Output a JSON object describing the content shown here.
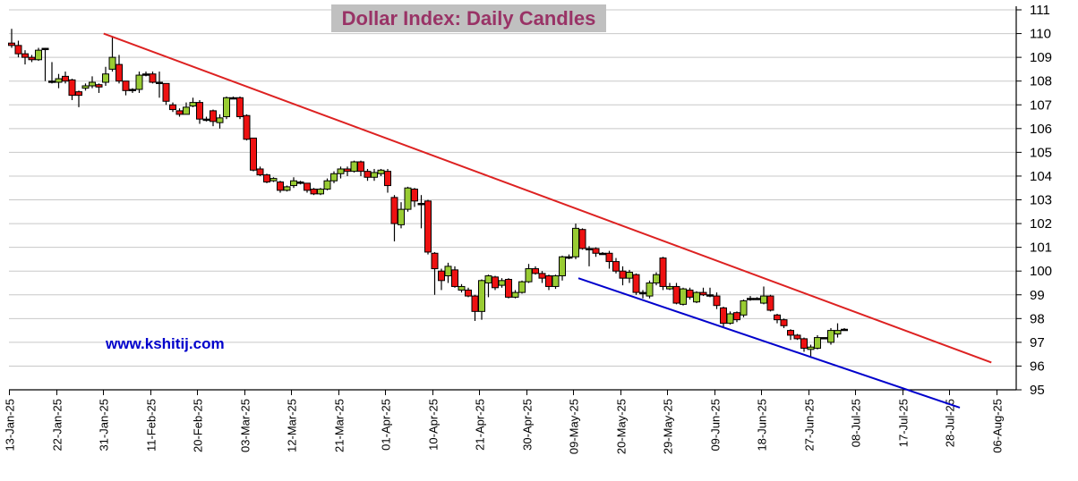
{
  "chart_data": {
    "type": "candlestick",
    "title": "Dollar Index: Daily Candles",
    "watermark": "www.kshitij.com",
    "xlabel": "",
    "ylabel": "",
    "ylim": [
      95,
      111
    ],
    "y_ticks": [
      95,
      96,
      97,
      98,
      99,
      100,
      101,
      102,
      103,
      104,
      105,
      106,
      107,
      108,
      109,
      110,
      111
    ],
    "y_axis_side": "right",
    "grid": "horizontal",
    "x_tick_every_n_sessions": 7,
    "x_tick_labels": [
      "13-Jan-25",
      "22-Jan-25",
      "31-Jan-25",
      "11-Feb-25",
      "20-Feb-25",
      "03-Mar-25",
      "12-Mar-25",
      "21-Mar-25",
      "01-Apr-25",
      "10-Apr-25",
      "21-Apr-25",
      "30-Apr-25",
      "09-May-25",
      "20-May-25",
      "29-May-25",
      "09-Jun-25",
      "18-Jun-25",
      "27-Jun-25",
      "08-Jul-25",
      "17-Jul-25",
      "28-Jul-25",
      "06-Aug-25"
    ],
    "colors": {
      "up": "#99cc33",
      "down": "#ee1111",
      "resistance": "#dd2222",
      "support": "#0000cc",
      "grid": "#c8c8c8"
    },
    "ohlc": [
      [
        109.6,
        110.2,
        109.4,
        109.5
      ],
      [
        109.5,
        109.7,
        109.0,
        109.15
      ],
      [
        109.15,
        109.3,
        108.7,
        109.0
      ],
      [
        109.0,
        109.1,
        108.8,
        108.9
      ],
      [
        108.9,
        109.4,
        108.85,
        109.3
      ],
      [
        109.35,
        109.4,
        108.0,
        109.38
      ],
      [
        107.95,
        108.8,
        107.9,
        108.0
      ],
      [
        107.95,
        108.3,
        107.7,
        108.1
      ],
      [
        108.2,
        108.4,
        107.9,
        108.0
      ],
      [
        108.05,
        108.1,
        107.2,
        107.4
      ],
      [
        107.55,
        107.6,
        106.9,
        107.4
      ],
      [
        107.7,
        107.9,
        107.6,
        107.8
      ],
      [
        107.8,
        108.2,
        107.7,
        107.95
      ],
      [
        107.85,
        107.9,
        107.5,
        107.75
      ],
      [
        107.95,
        108.6,
        107.8,
        108.3
      ],
      [
        108.5,
        109.9,
        108.4,
        109.0
      ],
      [
        108.7,
        109.1,
        107.9,
        108.0
      ],
      [
        108.0,
        108.0,
        107.4,
        107.6
      ],
      [
        107.6,
        107.7,
        107.5,
        107.65
      ],
      [
        107.65,
        108.4,
        107.5,
        108.25
      ],
      [
        108.25,
        108.4,
        108.2,
        108.3
      ],
      [
        108.3,
        108.4,
        107.9,
        107.95
      ],
      [
        107.95,
        108.4,
        107.3,
        107.9
      ],
      [
        107.9,
        107.9,
        107.0,
        107.15
      ],
      [
        107.0,
        107.1,
        106.7,
        106.8
      ],
      [
        106.75,
        106.85,
        106.5,
        106.6
      ],
      [
        106.6,
        107.1,
        106.6,
        106.9
      ],
      [
        106.95,
        107.3,
        106.9,
        107.1
      ],
      [
        107.1,
        107.2,
        106.2,
        106.4
      ],
      [
        106.4,
        106.5,
        106.3,
        106.4
      ],
      [
        106.75,
        106.8,
        106.1,
        106.3
      ],
      [
        106.25,
        106.6,
        106.0,
        106.45
      ],
      [
        106.5,
        107.35,
        106.4,
        107.3
      ],
      [
        107.3,
        107.35,
        107.25,
        107.3
      ],
      [
        107.3,
        107.35,
        106.4,
        106.5
      ],
      [
        106.55,
        106.6,
        105.5,
        105.55
      ],
      [
        105.6,
        105.6,
        104.2,
        104.25
      ],
      [
        104.3,
        104.4,
        104.0,
        104.05
      ],
      [
        104.05,
        104.1,
        103.7,
        103.75
      ],
      [
        103.8,
        103.95,
        103.75,
        103.9
      ],
      [
        103.75,
        103.8,
        103.3,
        103.4
      ],
      [
        103.4,
        103.6,
        103.35,
        103.55
      ],
      [
        103.6,
        103.95,
        103.5,
        103.8
      ],
      [
        103.75,
        103.8,
        103.65,
        103.7
      ],
      [
        103.7,
        103.7,
        103.3,
        103.4
      ],
      [
        103.45,
        103.5,
        103.2,
        103.25
      ],
      [
        103.25,
        103.5,
        103.2,
        103.45
      ],
      [
        103.45,
        103.9,
        103.4,
        103.8
      ],
      [
        103.8,
        104.2,
        103.7,
        104.1
      ],
      [
        104.1,
        104.4,
        103.9,
        104.3
      ],
      [
        104.3,
        104.4,
        104.0,
        104.2
      ],
      [
        104.2,
        104.65,
        104.15,
        104.6
      ],
      [
        104.6,
        104.65,
        104.0,
        104.2
      ],
      [
        104.2,
        104.3,
        103.8,
        103.95
      ],
      [
        103.95,
        104.3,
        103.8,
        104.15
      ],
      [
        104.1,
        104.3,
        104.0,
        104.25
      ],
      [
        104.2,
        104.3,
        103.3,
        103.6
      ],
      [
        103.1,
        103.2,
        101.25,
        102.0
      ],
      [
        101.95,
        102.9,
        101.8,
        102.6
      ],
      [
        102.6,
        103.55,
        102.5,
        103.5
      ],
      [
        103.45,
        103.5,
        102.7,
        102.95
      ],
      [
        102.85,
        103.2,
        101.8,
        102.85
      ],
      [
        102.95,
        103.0,
        100.7,
        100.8
      ],
      [
        100.75,
        100.8,
        99.0,
        100.1
      ],
      [
        100.0,
        100.1,
        99.2,
        99.6
      ],
      [
        99.8,
        100.35,
        99.5,
        100.2
      ],
      [
        100.05,
        100.2,
        99.3,
        99.35
      ],
      [
        99.2,
        99.45,
        99.1,
        99.35
      ],
      [
        99.2,
        99.3,
        98.9,
        98.95
      ],
      [
        98.95,
        99.0,
        97.9,
        98.3
      ],
      [
        98.3,
        99.65,
        97.95,
        99.6
      ],
      [
        99.5,
        99.85,
        98.9,
        99.8
      ],
      [
        99.75,
        99.8,
        99.2,
        99.3
      ],
      [
        99.4,
        99.7,
        99.3,
        99.6
      ],
      [
        99.65,
        99.7,
        98.85,
        98.9
      ],
      [
        98.9,
        99.2,
        98.85,
        99.1
      ],
      [
        99.1,
        99.6,
        99.05,
        99.55
      ],
      [
        99.55,
        100.3,
        99.5,
        100.1
      ],
      [
        100.1,
        100.2,
        99.85,
        99.9
      ],
      [
        99.9,
        100.0,
        99.5,
        99.7
      ],
      [
        99.8,
        99.85,
        99.2,
        99.35
      ],
      [
        99.35,
        99.85,
        99.25,
        99.8
      ],
      [
        99.8,
        100.65,
        99.6,
        100.6
      ],
      [
        100.6,
        100.7,
        100.5,
        100.6
      ],
      [
        100.6,
        102.0,
        100.5,
        101.8
      ],
      [
        101.75,
        101.8,
        100.9,
        100.95
      ],
      [
        100.95,
        101.05,
        100.2,
        100.95
      ],
      [
        100.95,
        101.0,
        100.6,
        100.75
      ],
      [
        100.75,
        100.8,
        100.7,
        100.75
      ],
      [
        100.75,
        100.85,
        100.1,
        100.4
      ],
      [
        100.4,
        100.55,
        99.9,
        100.0
      ],
      [
        100.0,
        100.2,
        99.4,
        99.7
      ],
      [
        99.7,
        100.05,
        99.5,
        99.95
      ],
      [
        99.85,
        99.9,
        99.0,
        99.1
      ],
      [
        99.1,
        99.2,
        98.85,
        99.1
      ],
      [
        98.95,
        99.6,
        98.85,
        99.5
      ],
      [
        99.5,
        99.95,
        99.4,
        99.85
      ],
      [
        100.55,
        100.6,
        99.2,
        99.35
      ],
      [
        99.25,
        99.5,
        99.2,
        99.35
      ],
      [
        99.35,
        99.5,
        98.6,
        98.65
      ],
      [
        98.6,
        99.3,
        98.55,
        99.25
      ],
      [
        99.2,
        99.3,
        98.8,
        98.9
      ],
      [
        98.7,
        99.15,
        98.65,
        99.1
      ],
      [
        99.1,
        99.3,
        98.95,
        99.0
      ],
      [
        99.0,
        99.3,
        98.9,
        98.95
      ],
      [
        98.95,
        99.1,
        98.4,
        98.55
      ],
      [
        98.45,
        98.5,
        97.6,
        97.8
      ],
      [
        97.8,
        98.3,
        97.75,
        98.2
      ],
      [
        98.25,
        98.3,
        97.85,
        97.95
      ],
      [
        98.15,
        98.8,
        98.05,
        98.75
      ],
      [
        98.8,
        98.95,
        98.75,
        98.85
      ],
      [
        98.85,
        98.9,
        98.8,
        98.85
      ],
      [
        98.65,
        99.35,
        98.6,
        98.95
      ],
      [
        98.95,
        99.0,
        98.3,
        98.35
      ],
      [
        98.15,
        98.2,
        97.8,
        97.95
      ],
      [
        97.95,
        98.0,
        97.6,
        97.7
      ],
      [
        97.5,
        97.55,
        97.1,
        97.3
      ],
      [
        97.3,
        97.35,
        97.1,
        97.15
      ],
      [
        97.15,
        97.2,
        96.6,
        96.75
      ],
      [
        96.7,
        96.9,
        96.35,
        96.8
      ],
      [
        96.75,
        97.3,
        96.7,
        97.2
      ],
      [
        97.2,
        97.2,
        97.15,
        97.2
      ],
      [
        97.0,
        97.6,
        96.9,
        97.5
      ],
      [
        97.35,
        97.8,
        97.2,
        97.5
      ],
      [
        97.55,
        97.6,
        97.5,
        97.55
      ]
    ],
    "trendlines": [
      {
        "name": "resistance",
        "from": [
          13.7,
          110.0
        ],
        "to": [
          145.9,
          96.15
        ]
      },
      {
        "name": "support",
        "from": [
          84.4,
          99.7
        ],
        "to": [
          141.2,
          94.25
        ]
      }
    ]
  }
}
